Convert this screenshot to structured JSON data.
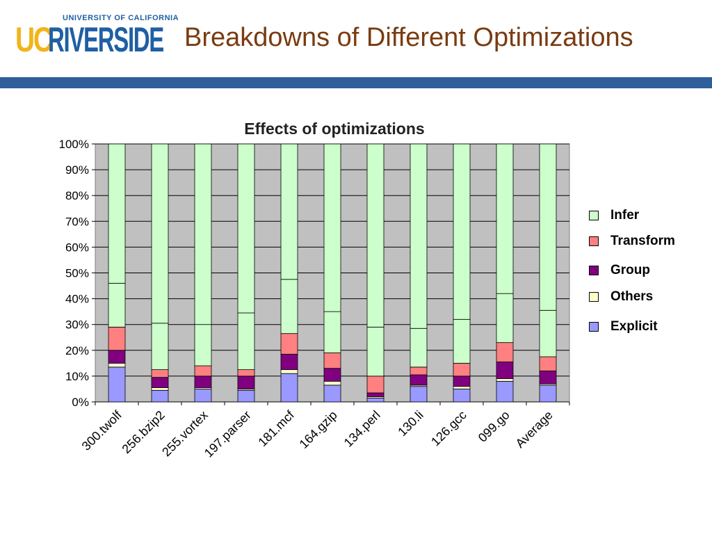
{
  "header": {
    "logo_top": "UNIVERSITY OF CALIFORNIA",
    "logo_uc": "UC",
    "logo_riverside": "RIVERSIDE",
    "title": "Breakdowns of Different Optimizations"
  },
  "colors": {
    "divider": "#2e5f9a",
    "plot_bg": "#c0c0c0",
    "Infer": "#ccffcc",
    "Transform": "#ff8080",
    "Group": "#800080",
    "Others": "#ffffcc",
    "Explicit": "#9999ff"
  },
  "chart_data": {
    "type": "bar",
    "stacked": true,
    "title": "Effects of optimizations",
    "xlabel": "",
    "ylabel": "",
    "ylim": [
      0,
      100
    ],
    "yticks": [
      "0%",
      "10%",
      "20%",
      "30%",
      "40%",
      "50%",
      "60%",
      "70%",
      "80%",
      "90%",
      "100%"
    ],
    "grid": true,
    "legend_position": "right",
    "categories": [
      "300.twolf",
      "256.bzip2",
      "255.vortex",
      "197.parser",
      "181.mcf",
      "164.gzip",
      "134.perl",
      "130.li",
      "126.gcc",
      "099.go",
      "Average"
    ],
    "series": [
      {
        "name": "Explicit",
        "values": [
          13.5,
          4.5,
          5,
          4.5,
          11,
          6.5,
          1.5,
          6,
          5,
          8,
          6.5
        ]
      },
      {
        "name": "Others",
        "values": [
          1.5,
          1,
          0.5,
          0.5,
          1.5,
          1.5,
          0.5,
          0.5,
          1,
          1,
          0.5
        ]
      },
      {
        "name": "Group",
        "values": [
          5,
          4,
          4.5,
          5,
          6,
          5,
          1.5,
          4,
          4,
          6.5,
          5
        ]
      },
      {
        "name": "Transform",
        "values": [
          9,
          3,
          4,
          2.5,
          8,
          6,
          6.5,
          3,
          5,
          7.5,
          5.5
        ]
      },
      {
        "name": "Infer",
        "values": [
          17,
          18,
          16,
          22,
          21,
          16,
          19,
          15,
          17,
          19,
          18
        ]
      }
    ],
    "legend": [
      "Infer",
      "Transform",
      "Group",
      "Others",
      "Explicit"
    ]
  }
}
